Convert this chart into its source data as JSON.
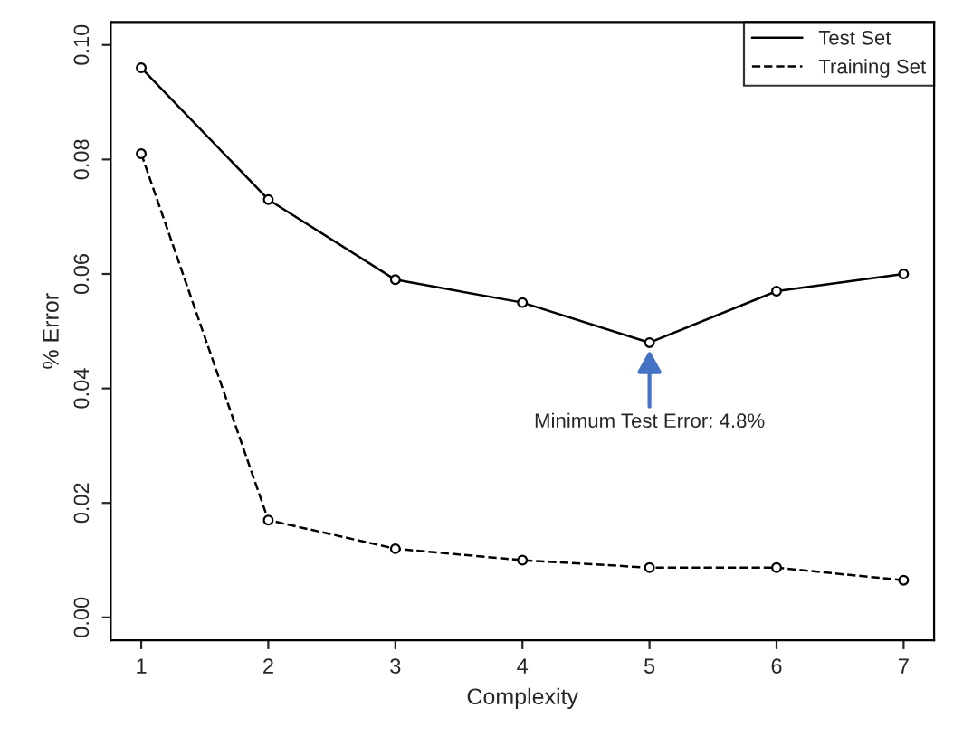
{
  "chart_data": {
    "type": "line",
    "xlabel": "Complexity",
    "ylabel": "% Error",
    "x": [
      1,
      2,
      3,
      4,
      5,
      6,
      7
    ],
    "series": [
      {
        "name": "Test Set",
        "color": "#000000",
        "line_style": "solid",
        "values": [
          0.096,
          0.073,
          0.059,
          0.055,
          0.048,
          0.057,
          0.06
        ]
      },
      {
        "name": "Training Set",
        "color": "#000000",
        "line_style": "dashed",
        "values": [
          0.081,
          0.017,
          0.012,
          0.01,
          0.0087,
          0.0087,
          0.0065
        ]
      }
    ],
    "xlim": [
      0.76,
      7.24
    ],
    "ylim": [
      -0.004,
      0.104
    ],
    "xticks": [
      1,
      2,
      3,
      4,
      5,
      6,
      7
    ],
    "yticks": [
      {
        "value": 0,
        "label": "0.00"
      },
      {
        "value": 0.02,
        "label": "0.02"
      },
      {
        "value": 0.04,
        "label": "0.04"
      },
      {
        "value": 0.06,
        "label": "0.06"
      },
      {
        "value": 0.08,
        "label": "0.08"
      },
      {
        "value": 0.1,
        "label": "0.10"
      }
    ],
    "annotations": [
      {
        "text": "Minimum Test Error: 4.8%",
        "x": 5,
        "y": 0.048
      }
    ],
    "marker": "circle",
    "grid": false,
    "legend": "top right"
  }
}
